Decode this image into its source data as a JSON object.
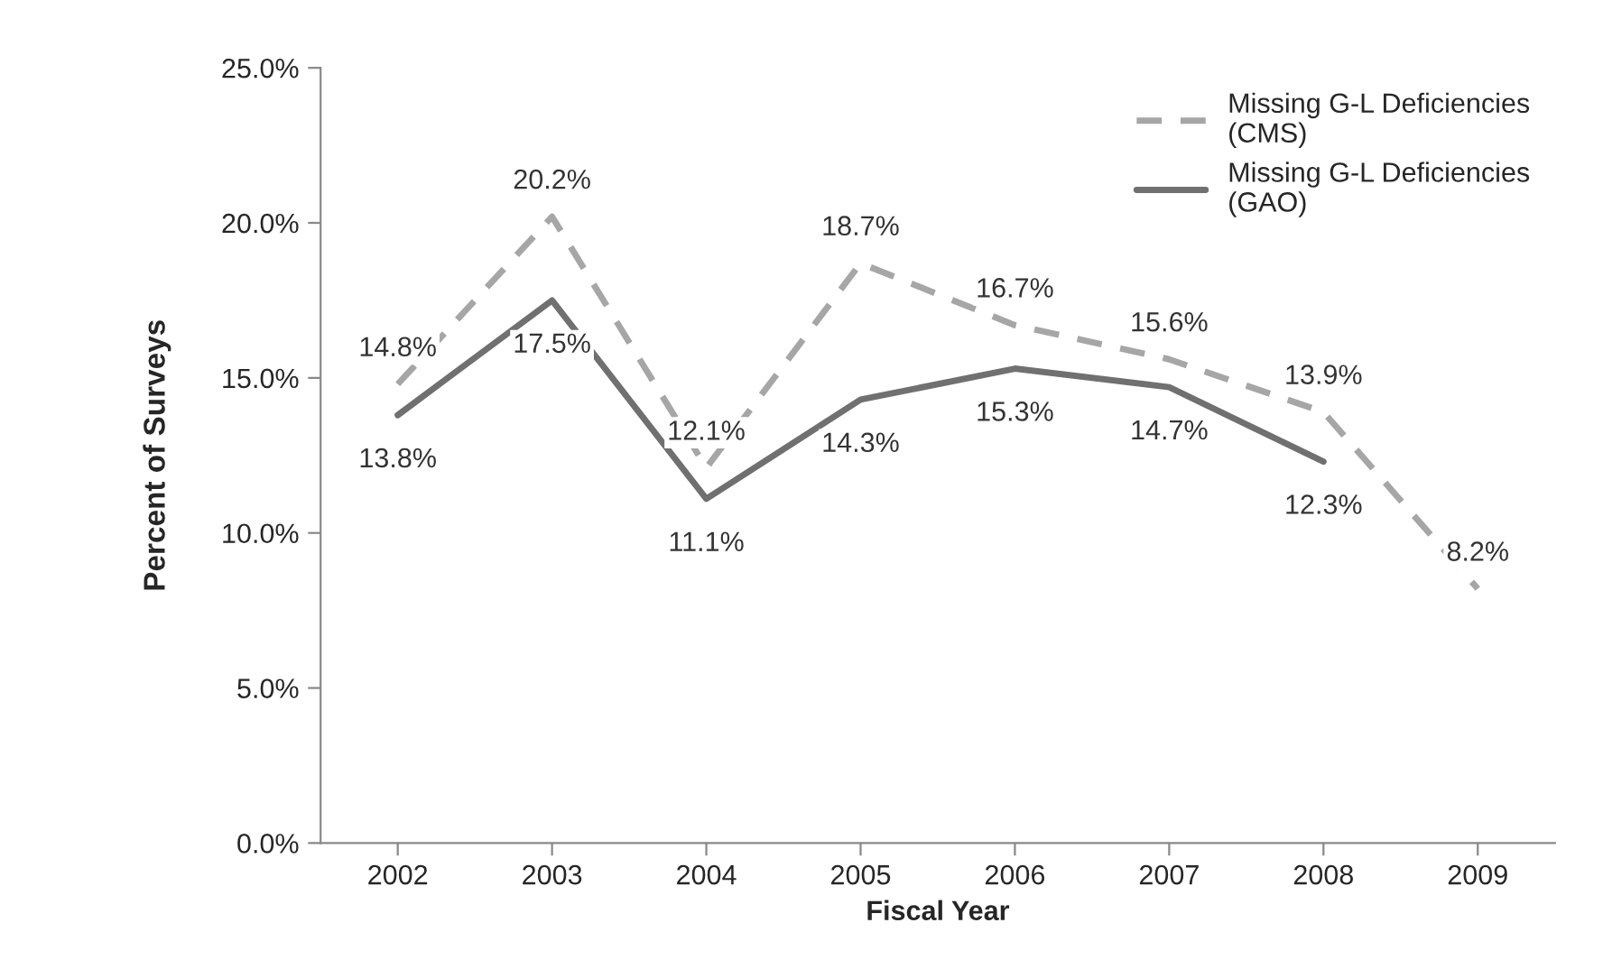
{
  "chart_data": {
    "type": "line",
    "xlabel": "Fiscal Year",
    "ylabel": "Percent of Surveys",
    "categories": [
      "2002",
      "2003",
      "2004",
      "2005",
      "2006",
      "2007",
      "2008",
      "2009"
    ],
    "series": [
      {
        "name": "Missing G-L Deficiencies (CMS)",
        "color": "#a6a6a6",
        "line_style": "dashed",
        "values": [
          14.8,
          20.2,
          12.1,
          18.7,
          16.7,
          15.6,
          13.9,
          8.2
        ],
        "value_labels": [
          "14.8%",
          "20.2%",
          "12.1%",
          "18.7%",
          "16.7%",
          "15.6%",
          "13.9%",
          "8.2%"
        ]
      },
      {
        "name": "Missing G-L Deficiencies (GAO)",
        "color": "#707070",
        "line_style": "solid",
        "values": [
          13.8,
          17.5,
          11.1,
          14.3,
          15.3,
          14.7,
          12.3,
          null
        ],
        "value_labels": [
          "13.8%",
          "17.5%",
          "11.1%",
          "14.3%",
          "15.3%",
          "14.7%",
          "12.3%",
          null
        ]
      }
    ],
    "ylim": [
      0,
      25
    ],
    "yticks": [
      {
        "value": 0,
        "label": "0.0%"
      },
      {
        "value": 5,
        "label": "5.0%"
      },
      {
        "value": 10,
        "label": "10.0%"
      },
      {
        "value": 15,
        "label": "15.0%"
      },
      {
        "value": 20,
        "label": "20.0%"
      },
      {
        "value": 25,
        "label": "25.0%"
      }
    ],
    "legend": "top right",
    "grid": false,
    "marker": "none"
  }
}
